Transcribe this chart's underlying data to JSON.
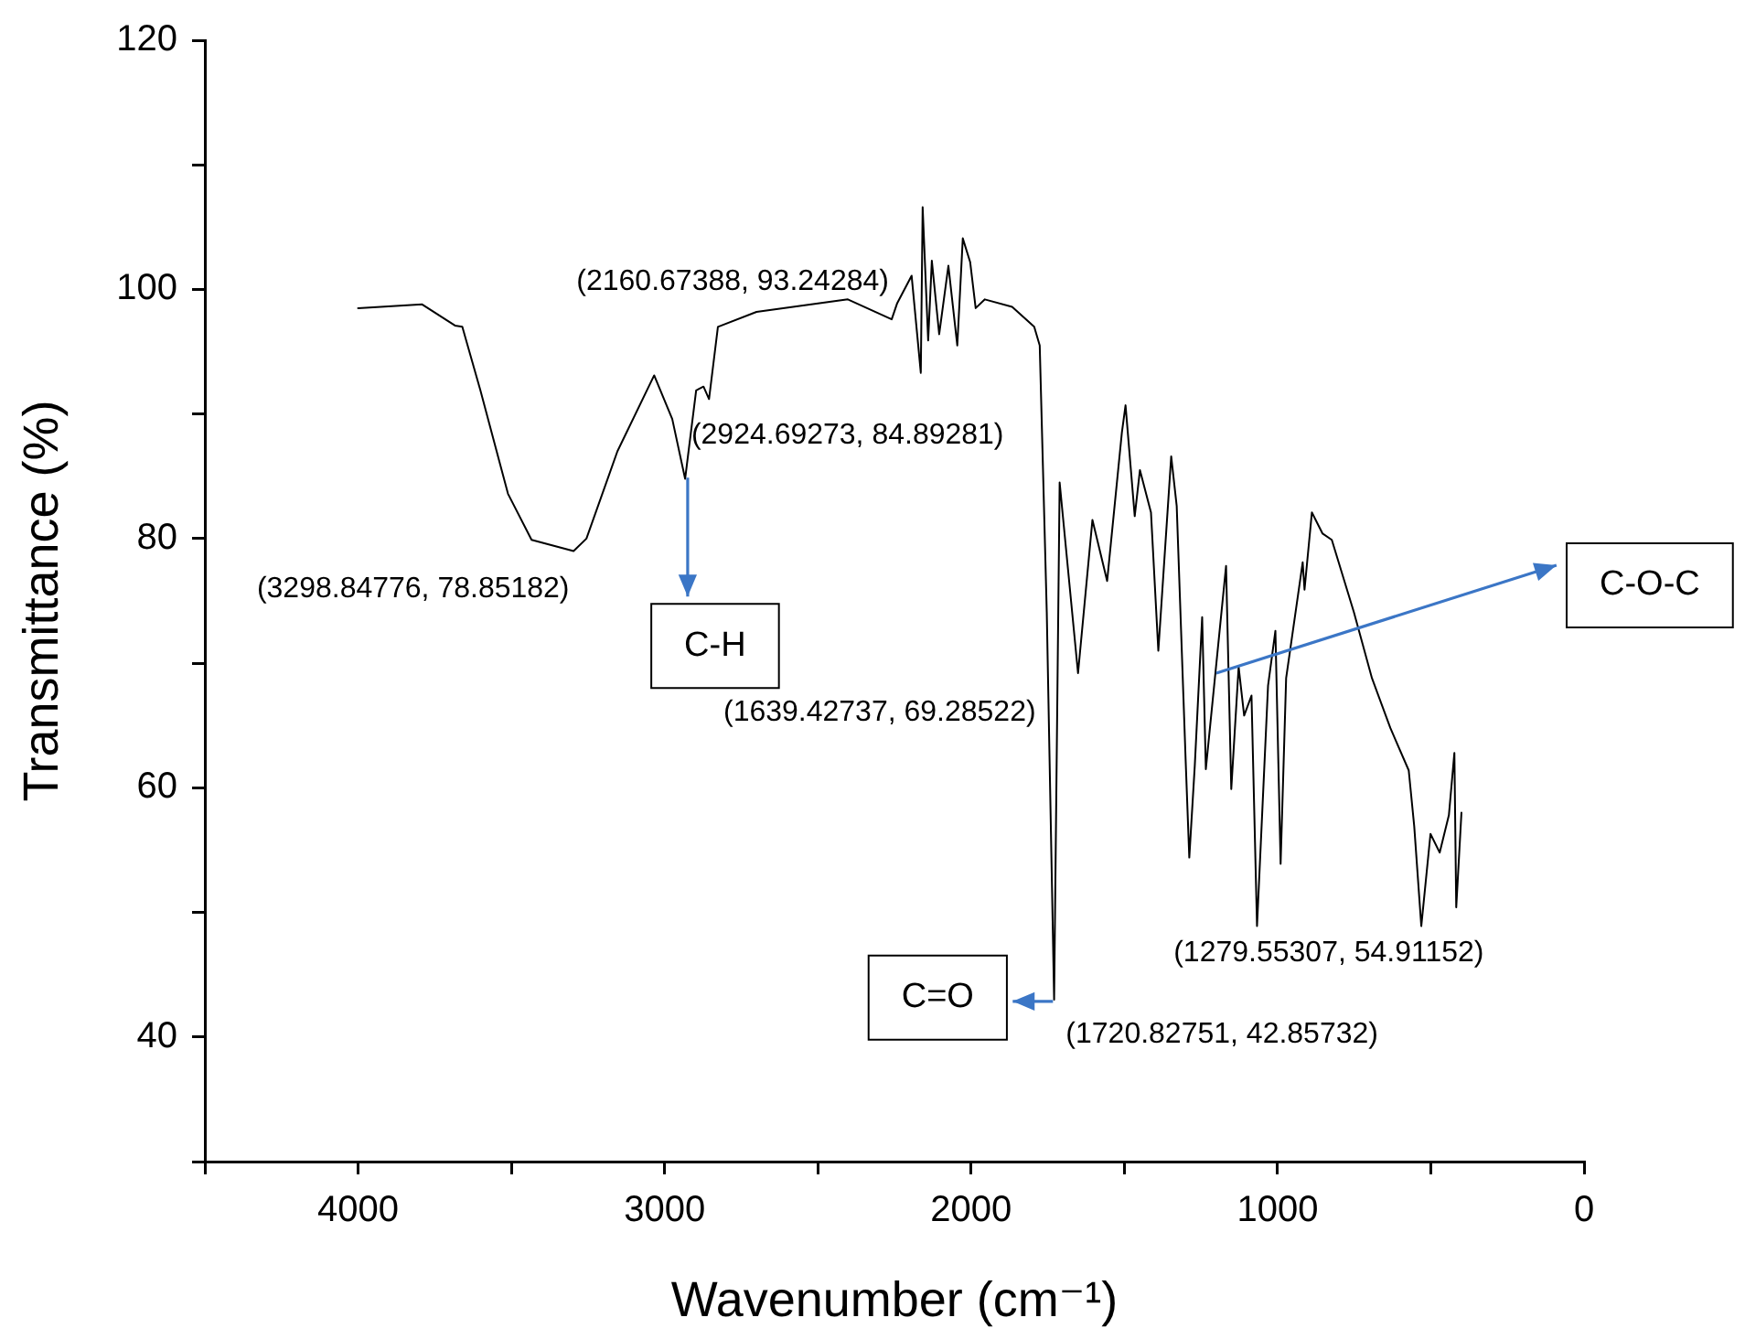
{
  "chart_data": {
    "type": "line",
    "xlabel": "Wavenumber (cm⁻¹)",
    "ylabel": "Transmittance (%)",
    "xlim": [
      4500,
      0
    ],
    "ylim": [
      30,
      120
    ],
    "xticks": [
      {
        "value": 4500,
        "label": null
      },
      4000,
      {
        "value": 3500,
        "label": null
      },
      3000,
      {
        "value": 2500,
        "label": null
      },
      2000,
      {
        "value": 1500,
        "label": null
      },
      1000,
      {
        "value": 500,
        "label": null
      },
      0
    ],
    "yticks": [
      {
        "value": 30,
        "label": null
      },
      40,
      {
        "value": 50,
        "label": null
      },
      60,
      {
        "value": 70,
        "label": null
      },
      80,
      {
        "value": 90,
        "label": null
      },
      100,
      {
        "value": 110,
        "label": null
      },
      120
    ],
    "grid": false,
    "legend": false,
    "marker": "none",
    "line_style": "solid",
    "series": [
      {
        "color": "#000000",
        "x": [
          4000,
          3791,
          3684,
          3660,
          3601,
          3511,
          3434,
          3297,
          3255,
          3154,
          3034,
          2975,
          2933,
          2897,
          2873,
          2855,
          2826,
          2700,
          2402,
          2259,
          2241,
          2194,
          2164,
          2158,
          2140,
          2128,
          2104,
          2074,
          2045,
          2027,
          2003,
          1985,
          1955,
          1866,
          1794,
          1776,
          1753,
          1729,
          1711,
          1693,
          1651,
          1604,
          1556,
          1508,
          1496,
          1466,
          1449,
          1413,
          1389,
          1347,
          1329,
          1300,
          1288,
          1270,
          1246,
          1234,
          1168,
          1151,
          1127,
          1109,
          1085,
          1067,
          1031,
          1007,
          990,
          972,
          918,
          912,
          888,
          853,
          823,
          751,
          692,
          632,
          572,
          554,
          531,
          501,
          471,
          441,
          423,
          417,
          400
        ],
        "values": [
          98.5,
          98.8,
          97.1,
          97,
          91.9,
          83.6,
          79.9,
          79,
          80,
          87,
          93.1,
          89.6,
          84.8,
          91.9,
          92.2,
          91.2,
          97,
          98.2,
          99.2,
          97.6,
          98.9,
          101.1,
          93.3,
          106.6,
          95.9,
          102.3,
          96.4,
          101.9,
          95.5,
          104.1,
          102.2,
          98.5,
          99.2,
          98.6,
          97,
          95.5,
          74.1,
          43,
          84.5,
          79.9,
          69.2,
          81.5,
          76.6,
          88.5,
          90.7,
          81.8,
          85.5,
          82.1,
          71,
          86.6,
          82.6,
          62.3,
          54.4,
          61.8,
          73.7,
          61.5,
          77.8,
          59.9,
          69.7,
          65.8,
          67.4,
          48.9,
          68.2,
          72.6,
          53.9,
          68.8,
          78.1,
          75.9,
          82.1,
          80.4,
          79.9,
          74.1,
          68.8,
          64.8,
          61.4,
          56.9,
          48.9,
          56.3,
          54.8,
          57.8,
          62.8,
          50.4,
          58
        ]
      }
    ],
    "annotations": [
      {
        "text": "(3298.84776, 78.85182)",
        "x": 3298.84776,
        "y": 78.85182
      },
      {
        "text": "(2924.69273, 84.89281)",
        "x": 2924.69273,
        "y": 84.89281
      },
      {
        "text": "(2160.67388, 93.24284)",
        "x": 2160.67388,
        "y": 93.24284
      },
      {
        "text": "(1639.42737, 69.28522)",
        "x": 1639.42737,
        "y": 69.28522
      },
      {
        "text": "(1279.55307, 54.91152)",
        "x": 1279.55307,
        "y": 54.91152
      },
      {
        "text": "(1720.82751, 42.85732)",
        "x": 1720.82751,
        "y": 42.85732
      },
      {
        "text": "C-H",
        "x": 2924.69273,
        "y": 84.89281
      },
      {
        "text": "C=O",
        "x": 1720.82751,
        "y": 42.85732
      },
      {
        "text": "C-O-C",
        "x": 1200,
        "y": 69.2
      }
    ]
  }
}
